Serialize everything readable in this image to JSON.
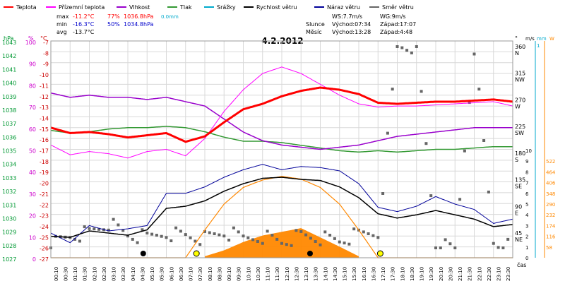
{
  "header": {
    "legend": [
      {
        "label": "Teplota",
        "color": "#ff0000"
      },
      {
        "label": "Přízemní teplota",
        "color": "#ff00ff"
      },
      {
        "label": "Vlhkost",
        "color": "#9900cc"
      },
      {
        "label": "Tlak",
        "color": "#339933"
      },
      {
        "label": "Srážky",
        "color": "#00aacc"
      },
      {
        "label": "Rychlost větru",
        "color": "#000000"
      },
      {
        "label": "Náraz větru",
        "color": "#000099"
      },
      {
        "label": "Směr větru",
        "color": "#666666"
      }
    ],
    "stats": {
      "max_label": "max",
      "max_temp": "-11.2°C",
      "max_hum": "77%",
      "max_press": "1036.8hPa",
      "rain": "0.0mm",
      "min_label": "min",
      "min_temp": "-16.3°C",
      "min_hum": "50%",
      "min_press": "1034.8hPa",
      "avg_label": "avg",
      "avg_temp": "-13.7°C"
    },
    "wind": {
      "ws": "WS:7.7m/s",
      "wg": "WG:9m/s"
    },
    "sun": {
      "label": "Slunce",
      "rise": "Východ:07:34",
      "set": "Západ:17:07"
    },
    "moon": {
      "label": "Měsíc",
      "rise": "Východ:13:28",
      "set": "Západ:4:48"
    }
  },
  "title": "4.2.2012",
  "axes": {
    "hpa_unit": "hPa",
    "pct_unit": "%",
    "degc_unit": "°C",
    "hpa_ticks": [
      "1043",
      "1042",
      "1041",
      "1040",
      "1039",
      "1038",
      "1037",
      "1036",
      "1035",
      "1034",
      "1033",
      "1032",
      "1031",
      "1030",
      "1029",
      "1028",
      "1027"
    ],
    "pct_ticks": [
      "100",
      "90",
      "80",
      "70",
      "60",
      "50",
      "40",
      "30",
      "20",
      "10",
      "0"
    ],
    "temp_ticks": [
      "-7",
      "-8",
      "-9",
      "-10",
      "-11",
      "-12",
      "-13",
      "-14",
      "-15",
      "-16",
      "-17",
      "-18",
      "-19",
      "-20",
      "-21",
      "-22",
      "-23",
      "-24",
      "-25",
      "-26",
      "-27"
    ],
    "dir_unit": "°",
    "dir_ticks": [
      {
        "deg": "360",
        "name": "N"
      },
      {
        "deg": "315",
        "name": "NW"
      },
      {
        "deg": "270",
        "name": "W"
      },
      {
        "deg": "225",
        "name": "SW"
      },
      {
        "deg": "180",
        "name": "S"
      },
      {
        "deg": "135",
        "name": "SE"
      },
      {
        "deg": "90",
        "name": "E"
      },
      {
        "deg": "45",
        "name": "NE"
      }
    ],
    "ms_unit": "m/s",
    "mm_unit": "mm",
    "w_unit": "W",
    "ms_ticks": [
      "10",
      "9",
      "8",
      "7",
      "6",
      "5",
      "4",
      "3",
      "2",
      "1",
      "0"
    ],
    "mm_top": "1",
    "w_ticks": [
      "522",
      "464",
      "406",
      "348",
      "290",
      "232",
      "174",
      "116",
      "58"
    ],
    "time_ticks": [
      "00:10",
      "00:30",
      "01:10",
      "01:30",
      "02:10",
      "02:30",
      "03:10",
      "03:30",
      "04:10",
      "04:30",
      "05:10",
      "05:30",
      "06:10",
      "06:30",
      "07:10",
      "07:30",
      "08:10",
      "08:30",
      "09:10",
      "09:30",
      "10:10",
      "10:30",
      "11:10",
      "11:30",
      "12:10",
      "12:30",
      "13:10",
      "13:30",
      "14:10",
      "14:30",
      "15:10",
      "15:30",
      "16:10",
      "16:30",
      "17:10",
      "17:30",
      "18:10",
      "18:30",
      "19:10",
      "19:30",
      "20:10",
      "20:30",
      "21:10",
      "21:30",
      "22:10",
      "22:30",
      "23:10",
      "23:30"
    ],
    "time_label": "čas"
  },
  "colors": {
    "temp": "#ff0000",
    "ground": "#ff00ff",
    "hum": "#9900cc",
    "press": "#339933",
    "wind": "#000000",
    "gust": "#000099",
    "dir": "#666666",
    "solar": "#ff8800",
    "hpa_axis": "#009933",
    "pct_axis": "#cc00cc",
    "temp_axis": "#cc0000",
    "rain_axis": "#00aacc",
    "grid": "#d8d8d8",
    "stat_red": "#ff0000",
    "stat_blue": "#0000cc",
    "stat_cyan": "#00aacc"
  },
  "chart_data": {
    "type": "line",
    "title": "4.2.2012",
    "x_hours": [
      0,
      1,
      2,
      3,
      4,
      5,
      6,
      7,
      8,
      9,
      10,
      11,
      12,
      13,
      14,
      15,
      16,
      17,
      18,
      19,
      20,
      21,
      22,
      23,
      24
    ],
    "series": [
      {
        "name": "Teplota",
        "unit": "°C",
        "values": [
          -15.0,
          -15.5,
          -15.4,
          -15.6,
          -15.9,
          -15.7,
          -15.5,
          -16.3,
          -15.8,
          -14.5,
          -13.3,
          -12.8,
          -12.1,
          -11.6,
          -11.3,
          -11.5,
          -11.9,
          -12.7,
          -12.8,
          -12.7,
          -12.6,
          -12.6,
          -12.5,
          -12.4,
          -12.6
        ]
      },
      {
        "name": "Přízemní teplota",
        "unit": "°C",
        "values": [
          -16.6,
          -17.5,
          -17.2,
          -17.4,
          -17.8,
          -17.2,
          -17.0,
          -17.6,
          -16.0,
          -13.5,
          -11.5,
          -10.0,
          -9.4,
          -10.0,
          -11.0,
          -12.0,
          -12.8,
          -13.1,
          -13.0,
          -13.0,
          -12.9,
          -12.8,
          -12.7,
          -12.6,
          -13.0
        ]
      },
      {
        "name": "Vlhkost",
        "unit": "%",
        "values": [
          76,
          74,
          75,
          74,
          74,
          73,
          74,
          72,
          70,
          64,
          58,
          54,
          52,
          51,
          50,
          51,
          52,
          54,
          56,
          57,
          58,
          59,
          60,
          60,
          60
        ]
      },
      {
        "name": "Tlak",
        "unit": "hPa",
        "values": [
          1036.4,
          1036.2,
          1036.3,
          1036.5,
          1036.6,
          1036.6,
          1036.7,
          1036.6,
          1036.3,
          1035.9,
          1035.6,
          1035.6,
          1035.5,
          1035.3,
          1035.1,
          1034.9,
          1034.8,
          1034.9,
          1034.8,
          1034.9,
          1035.0,
          1035.0,
          1035.1,
          1035.2,
          1035.2
        ]
      },
      {
        "name": "Rychlost větru",
        "unit": "m/s",
        "values": [
          2.0,
          1.9,
          2.5,
          2.3,
          2.1,
          2.6,
          4.6,
          4.8,
          5.3,
          6.2,
          6.9,
          7.4,
          7.5,
          7.3,
          7.2,
          6.6,
          5.6,
          4.1,
          3.7,
          4.0,
          4.4,
          4.0,
          3.6,
          2.9,
          3.1
        ]
      },
      {
        "name": "Náraz větru",
        "unit": "m/s",
        "values": [
          2.3,
          1.4,
          3.0,
          2.5,
          2.7,
          3.0,
          6.0,
          6.0,
          6.6,
          7.5,
          8.2,
          8.7,
          8.2,
          8.5,
          8.4,
          8.1,
          6.9,
          4.7,
          4.3,
          4.8,
          5.7,
          5.0,
          4.5,
          3.2,
          3.6
        ]
      },
      {
        "name": "Sluneční záření",
        "unit": "W",
        "values": [
          0,
          0,
          0,
          0,
          0,
          0,
          0,
          0,
          8,
          40,
          85,
          120,
          140,
          160,
          110,
          60,
          8,
          0,
          0,
          0,
          0,
          0,
          0,
          0,
          0
        ]
      },
      {
        "name": "Teoretické záření",
        "unit": "W",
        "values": [
          0,
          0,
          0,
          0,
          0,
          0,
          0,
          0,
          150,
          290,
          380,
          420,
          440,
          425,
          380,
          290,
          150,
          0,
          0,
          0,
          0,
          0,
          0,
          0,
          0
        ]
      },
      {
        "name": "Směr větru",
        "unit": "°",
        "values": [
          25,
          40,
          45,
          60,
          40,
          35,
          45,
          40,
          35,
          45,
          35,
          40,
          30,
          40,
          35,
          30,
          40,
          45,
          360,
          360,
          25,
          15,
          360,
          30,
          20
        ]
      }
    ],
    "markers": [
      {
        "kind": "sunrise",
        "time": "07:34"
      },
      {
        "kind": "sunset",
        "time": "17:07"
      },
      {
        "kind": "moonset",
        "time": "4:48"
      },
      {
        "kind": "moonrise",
        "time": "13:28"
      }
    ]
  }
}
